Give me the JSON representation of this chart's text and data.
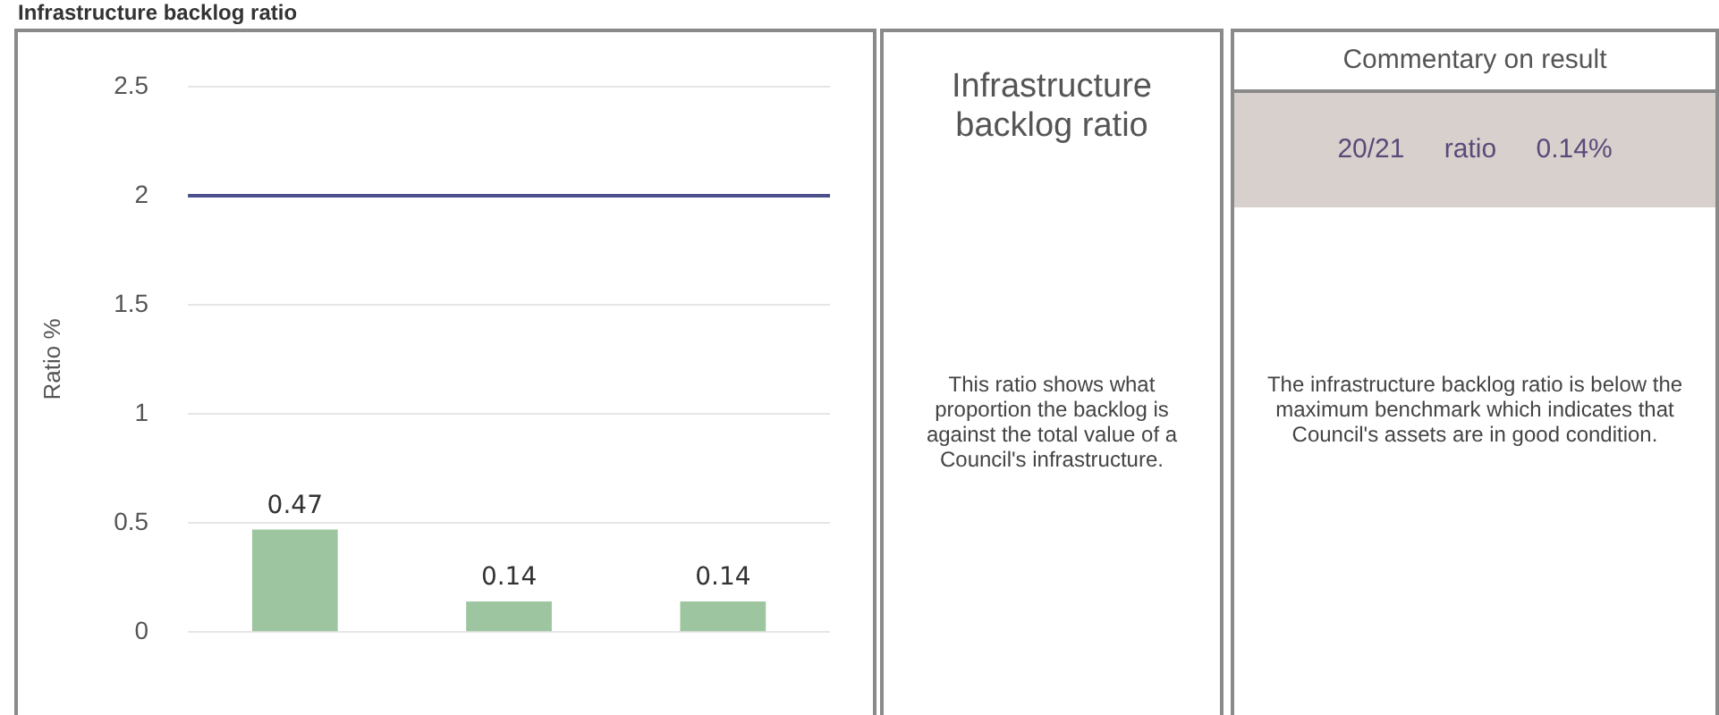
{
  "chart_data": [
    {
      "type": "bar",
      "title": "Infrastructure backlog ratio",
      "ylabel": "Ratio %",
      "categories": [
        null,
        null,
        null
      ],
      "values": [
        0.47,
        0.14,
        0.14
      ],
      "color": "#9dc59f",
      "ylim": [
        0,
        2.5
      ],
      "yticks": [
        0,
        0.5,
        1,
        1.5,
        2,
        2.5
      ],
      "grid": "y",
      "data_labels": true,
      "ref_lines": [
        {
          "axis": "y",
          "value": 2,
          "color": "#4b4f8c"
        }
      ]
    },
    {
      "type": "other",
      "title": "Infrastructure backlog ratio",
      "annotations": [
        "This ratio shows what proportion the backlog is against the total value of a Council's infrastructure."
      ]
    },
    {
      "type": "other",
      "title": "Commentary on result",
      "subtitle": "20/21 ratio 0.14%",
      "annotations": [
        "The infrastructure backlog ratio is below the maximum benchmark which indicates that Council's assets are in good condition."
      ]
    }
  ]
}
